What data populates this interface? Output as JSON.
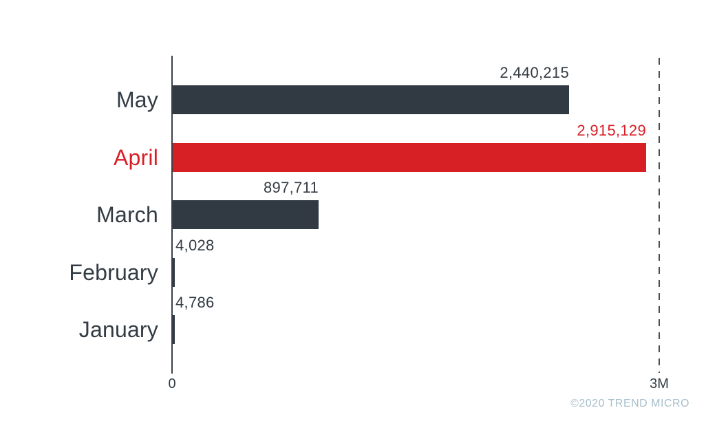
{
  "chart_data": {
    "type": "bar",
    "orientation": "horizontal",
    "title": "",
    "xlabel": "",
    "ylabel": "",
    "categories": [
      "May",
      "April",
      "March",
      "February",
      "January"
    ],
    "values": [
      2440215,
      2915129,
      897711,
      4028,
      4786
    ],
    "value_labels": [
      "2,440,215",
      "2,915,129",
      "897,711",
      "4,028",
      "4,786"
    ],
    "highlight_category": "April",
    "xlim": [
      0,
      3000000
    ],
    "x_ticks": [
      {
        "value": 0,
        "label": "0"
      },
      {
        "value": 3000000,
        "label": "3M"
      }
    ],
    "gridline": {
      "at_value": 3000000,
      "at_label": "3M",
      "style": "dashed"
    },
    "legend": "none",
    "colors": {
      "bar_default": "#313943",
      "bar_highlight": "#d71f26",
      "label_default": "#333b43",
      "label_highlight": "#d71f26",
      "axis_line": "#3a4148",
      "dashed_gridline": "#4a5056"
    }
  },
  "footer": {
    "copyright": "©2020 TREND MICRO"
  }
}
